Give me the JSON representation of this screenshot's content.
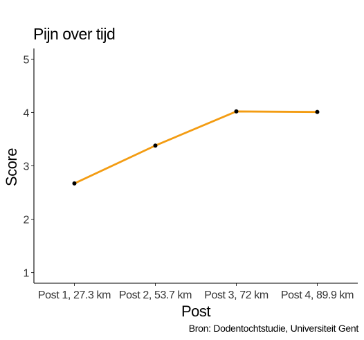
{
  "chart_data": {
    "type": "line",
    "title": "Pijn over tijd",
    "caption": "Bron: Dodentochtstudie, Universiteit Gent",
    "xlabel": "Post",
    "ylabel": "Score",
    "categories": [
      "Post 1, 27.3 km",
      "Post 2, 53.7 km",
      "Post 3, 72 km",
      "Post 4, 89.9 km"
    ],
    "series": [
      {
        "values": [
          2.67,
          3.38,
          4.02,
          4.01
        ]
      }
    ],
    "ylim": [
      0.8,
      5.2
    ],
    "yticks": [
      1,
      2,
      3,
      4,
      5
    ],
    "grid": false,
    "colors": {
      "line": "#f39c12",
      "point": "#000000",
      "axis": "#000000"
    }
  }
}
